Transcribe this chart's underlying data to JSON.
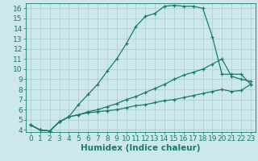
{
  "xlabel": "Humidex (Indice chaleur)",
  "background_color": "#cce8ed",
  "line_color": "#1a7a6e",
  "grid_color": "#aacccc",
  "xlim": [
    -0.5,
    23.5
  ],
  "ylim": [
    3.8,
    16.5
  ],
  "xticks": [
    0,
    1,
    2,
    3,
    4,
    5,
    6,
    7,
    8,
    9,
    10,
    11,
    12,
    13,
    14,
    15,
    16,
    17,
    18,
    19,
    20,
    21,
    22,
    23
  ],
  "yticks": [
    4,
    5,
    6,
    7,
    8,
    9,
    10,
    11,
    12,
    13,
    14,
    15,
    16
  ],
  "curve1_x": [
    0,
    1,
    2,
    3,
    4,
    5,
    6,
    7,
    8,
    9,
    10,
    11,
    12,
    13,
    14,
    15,
    16,
    17,
    18,
    19,
    20,
    21,
    22,
    23
  ],
  "curve1_y": [
    4.5,
    4.0,
    3.9,
    4.8,
    5.3,
    6.5,
    7.5,
    8.5,
    9.8,
    11.0,
    12.5,
    14.2,
    15.2,
    15.5,
    16.2,
    16.3,
    16.2,
    16.2,
    16.0,
    13.2,
    9.5,
    9.5,
    9.5,
    8.5
  ],
  "curve2_x": [
    0,
    1,
    2,
    3,
    4,
    5,
    6,
    7,
    8,
    9,
    10,
    11,
    12,
    13,
    14,
    15,
    16,
    17,
    18,
    19,
    20,
    21,
    22,
    23
  ],
  "curve2_y": [
    4.5,
    4.0,
    3.9,
    4.8,
    5.3,
    5.5,
    5.8,
    6.0,
    6.3,
    6.6,
    7.0,
    7.3,
    7.7,
    8.1,
    8.5,
    9.0,
    9.4,
    9.7,
    10.0,
    10.5,
    11.0,
    9.3,
    9.0,
    8.8
  ],
  "curve3_x": [
    0,
    1,
    2,
    3,
    4,
    5,
    6,
    7,
    8,
    9,
    10,
    11,
    12,
    13,
    14,
    15,
    16,
    17,
    18,
    19,
    20,
    21,
    22,
    23
  ],
  "curve3_y": [
    4.5,
    4.0,
    3.9,
    4.8,
    5.3,
    5.5,
    5.7,
    5.8,
    5.9,
    6.0,
    6.2,
    6.4,
    6.5,
    6.7,
    6.9,
    7.0,
    7.2,
    7.4,
    7.6,
    7.8,
    8.0,
    7.8,
    7.9,
    8.5
  ],
  "tick_fontsize": 6.5,
  "label_fontsize": 7.5
}
